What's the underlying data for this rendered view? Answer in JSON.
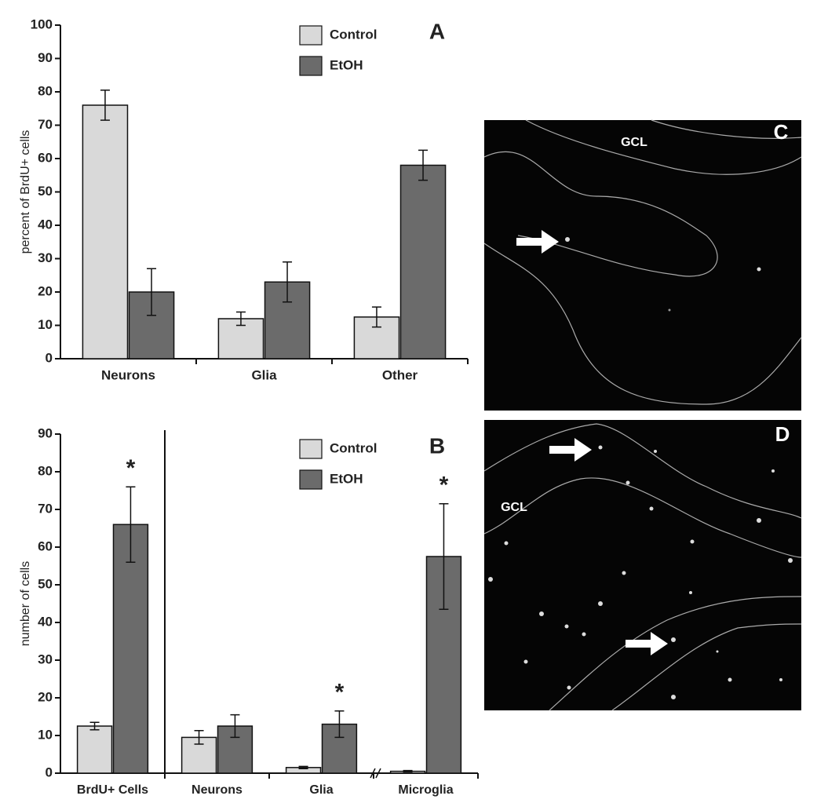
{
  "chart_data": [
    {
      "type": "bar",
      "panel": "A",
      "ylabel": "percent of BrdU+ cells",
      "categories": [
        "Neurons",
        "Glia",
        "Other"
      ],
      "series": [
        {
          "name": "Control",
          "color": "#d9d9d9",
          "values": [
            76,
            12,
            12.5
          ],
          "errors": [
            4.5,
            2,
            3
          ]
        },
        {
          "name": "EtOH",
          "color": "#6b6b6b",
          "values": [
            20,
            23,
            58
          ],
          "errors": [
            7,
            6,
            4.5
          ]
        }
      ],
      "ylim": [
        0,
        100
      ],
      "yticks": [
        0,
        10,
        20,
        30,
        40,
        50,
        60,
        70,
        80,
        90,
        100
      ]
    },
    {
      "type": "bar",
      "panel": "B",
      "ylabel": "number of cells",
      "categories": [
        "BrdU+ Cells",
        "Neurons",
        "Glia",
        "Microglia"
      ],
      "series": [
        {
          "name": "Control",
          "color": "#d9d9d9",
          "values": [
            12.5,
            9.5,
            1.5,
            0.5
          ],
          "errors": [
            1,
            1.8,
            0.3,
            0.2
          ]
        },
        {
          "name": "EtOH",
          "color": "#6b6b6b",
          "values": [
            66,
            12.5,
            13,
            57.5
          ],
          "errors": [
            10,
            3,
            3.5,
            14
          ],
          "markers": [
            "*",
            null,
            "*",
            "*"
          ]
        }
      ],
      "ylim": [
        0,
        90
      ],
      "yticks": [
        0,
        10,
        20,
        30,
        40,
        50,
        60,
        70,
        80,
        90
      ]
    }
  ],
  "images": [
    {
      "panel": "C",
      "region": "GCL"
    },
    {
      "panel": "D",
      "region": "GCL"
    }
  ]
}
